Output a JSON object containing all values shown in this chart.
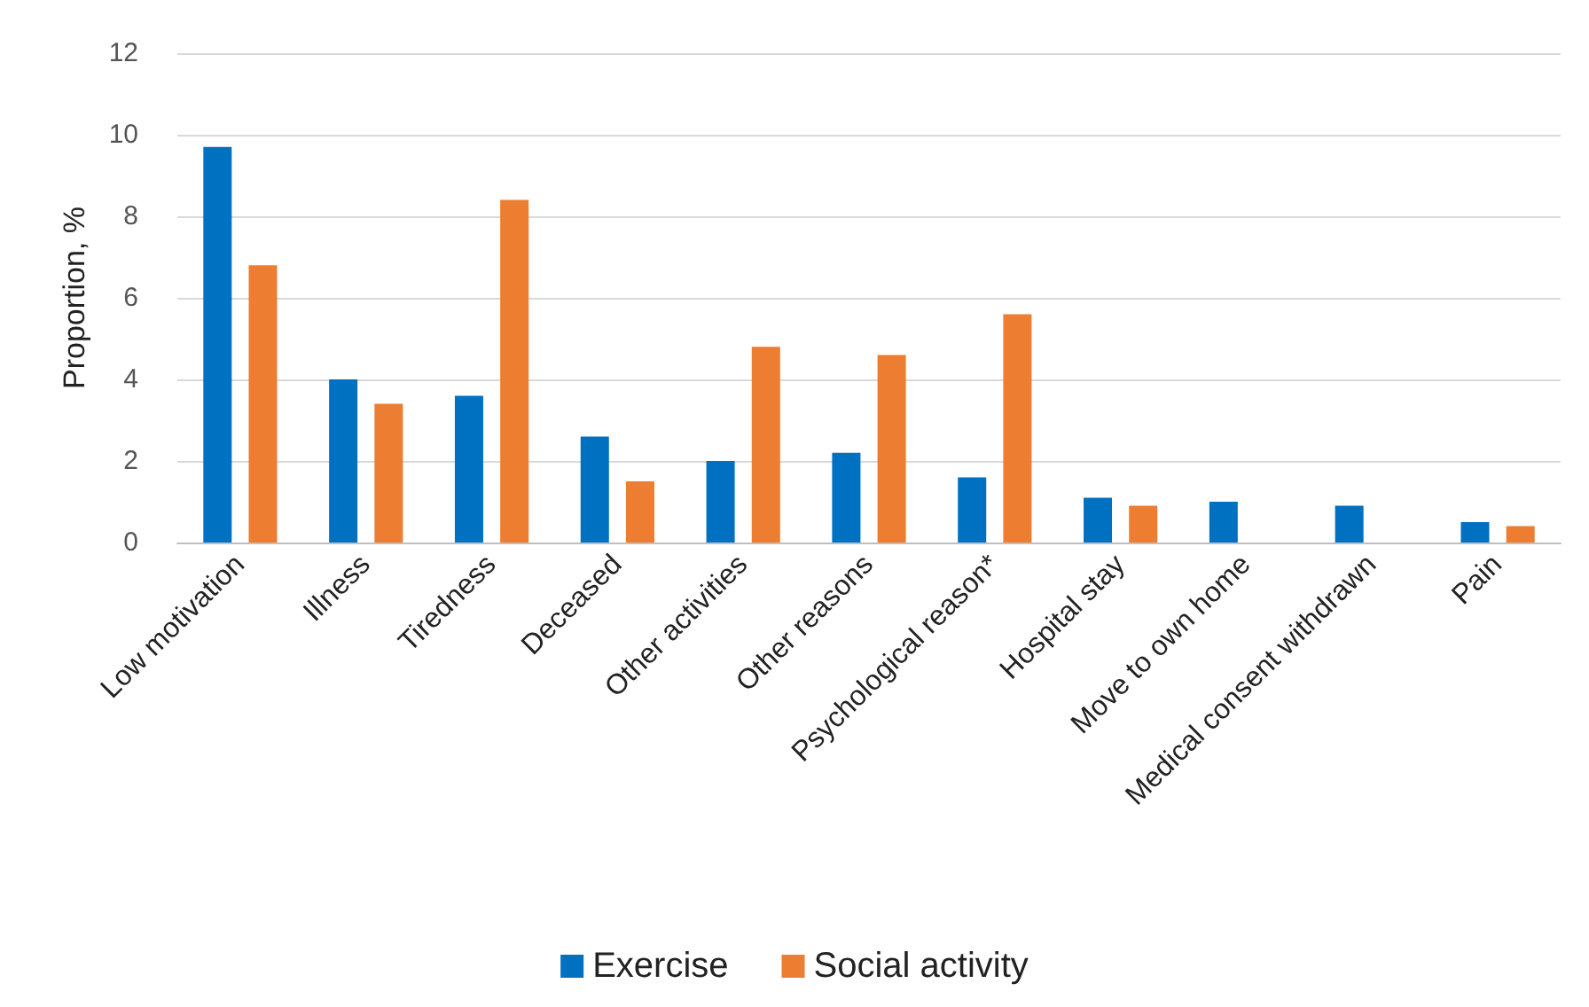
{
  "chart_data": {
    "type": "bar",
    "ylabel": "Proportion, %",
    "categories": [
      "Low motivation",
      "Illness",
      "Tiredness",
      "Deceased",
      "Other activities",
      "Other reasons",
      "Psychological reason*",
      "Hospital stay",
      "Move to own home",
      "Medical consent withdrawn",
      "Pain"
    ],
    "series": [
      {
        "name": "Exercise",
        "color": "#0070c0",
        "values": [
          9.7,
          4.0,
          3.6,
          2.6,
          2.0,
          2.2,
          1.6,
          1.1,
          1.0,
          0.9,
          0.5
        ]
      },
      {
        "name": "Social activity",
        "color": "#ed7d31",
        "values": [
          6.8,
          3.4,
          8.4,
          1.5,
          4.8,
          4.6,
          5.6,
          0.9,
          null,
          null,
          0.4
        ]
      }
    ],
    "ylim": [
      0,
      12
    ],
    "yticks": [
      0,
      2,
      4,
      6,
      8,
      10,
      12
    ],
    "grid": "y",
    "legend": "bottom"
  }
}
